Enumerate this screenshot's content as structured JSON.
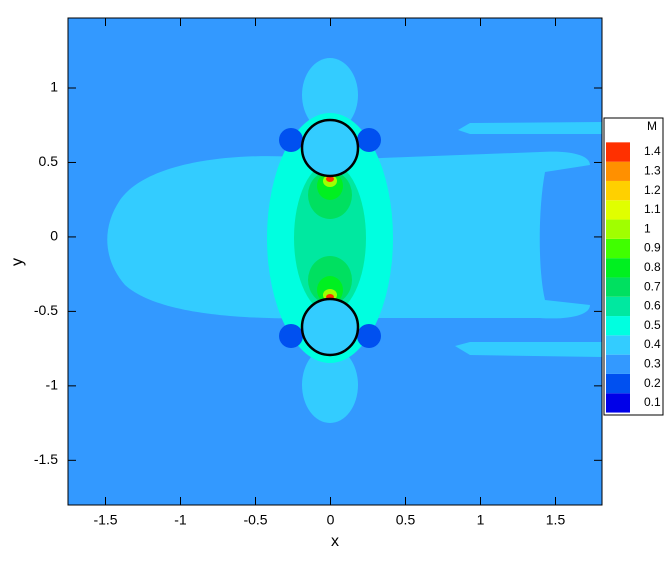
{
  "chart_data": {
    "type": "contour",
    "xlabel": "x",
    "ylabel": "y",
    "xlim": [
      -1.75,
      1.81
    ],
    "ylim": [
      -1.8,
      1.47
    ],
    "xticks": [
      -1.5,
      -1,
      -0.5,
      0,
      0.5,
      1,
      1.5
    ],
    "yticks": [
      -1.5,
      -1,
      -0.5,
      0,
      0.5,
      1
    ],
    "colorbar_title": "M",
    "levels": [
      0.1,
      0.2,
      0.3,
      0.4,
      0.5,
      0.6,
      0.7,
      0.8,
      0.9,
      1,
      1.1,
      1.2,
      1.3,
      1.4
    ],
    "colors": [
      "#0000e8",
      "#0050f0",
      "#3399ff",
      "#33ccff",
      "#00ffe0",
      "#00e8a0",
      "#00e060",
      "#00f020",
      "#40ff00",
      "#a0ff00",
      "#e0ff00",
      "#ffd000",
      "#ff9000",
      "#ff3000"
    ]
  }
}
